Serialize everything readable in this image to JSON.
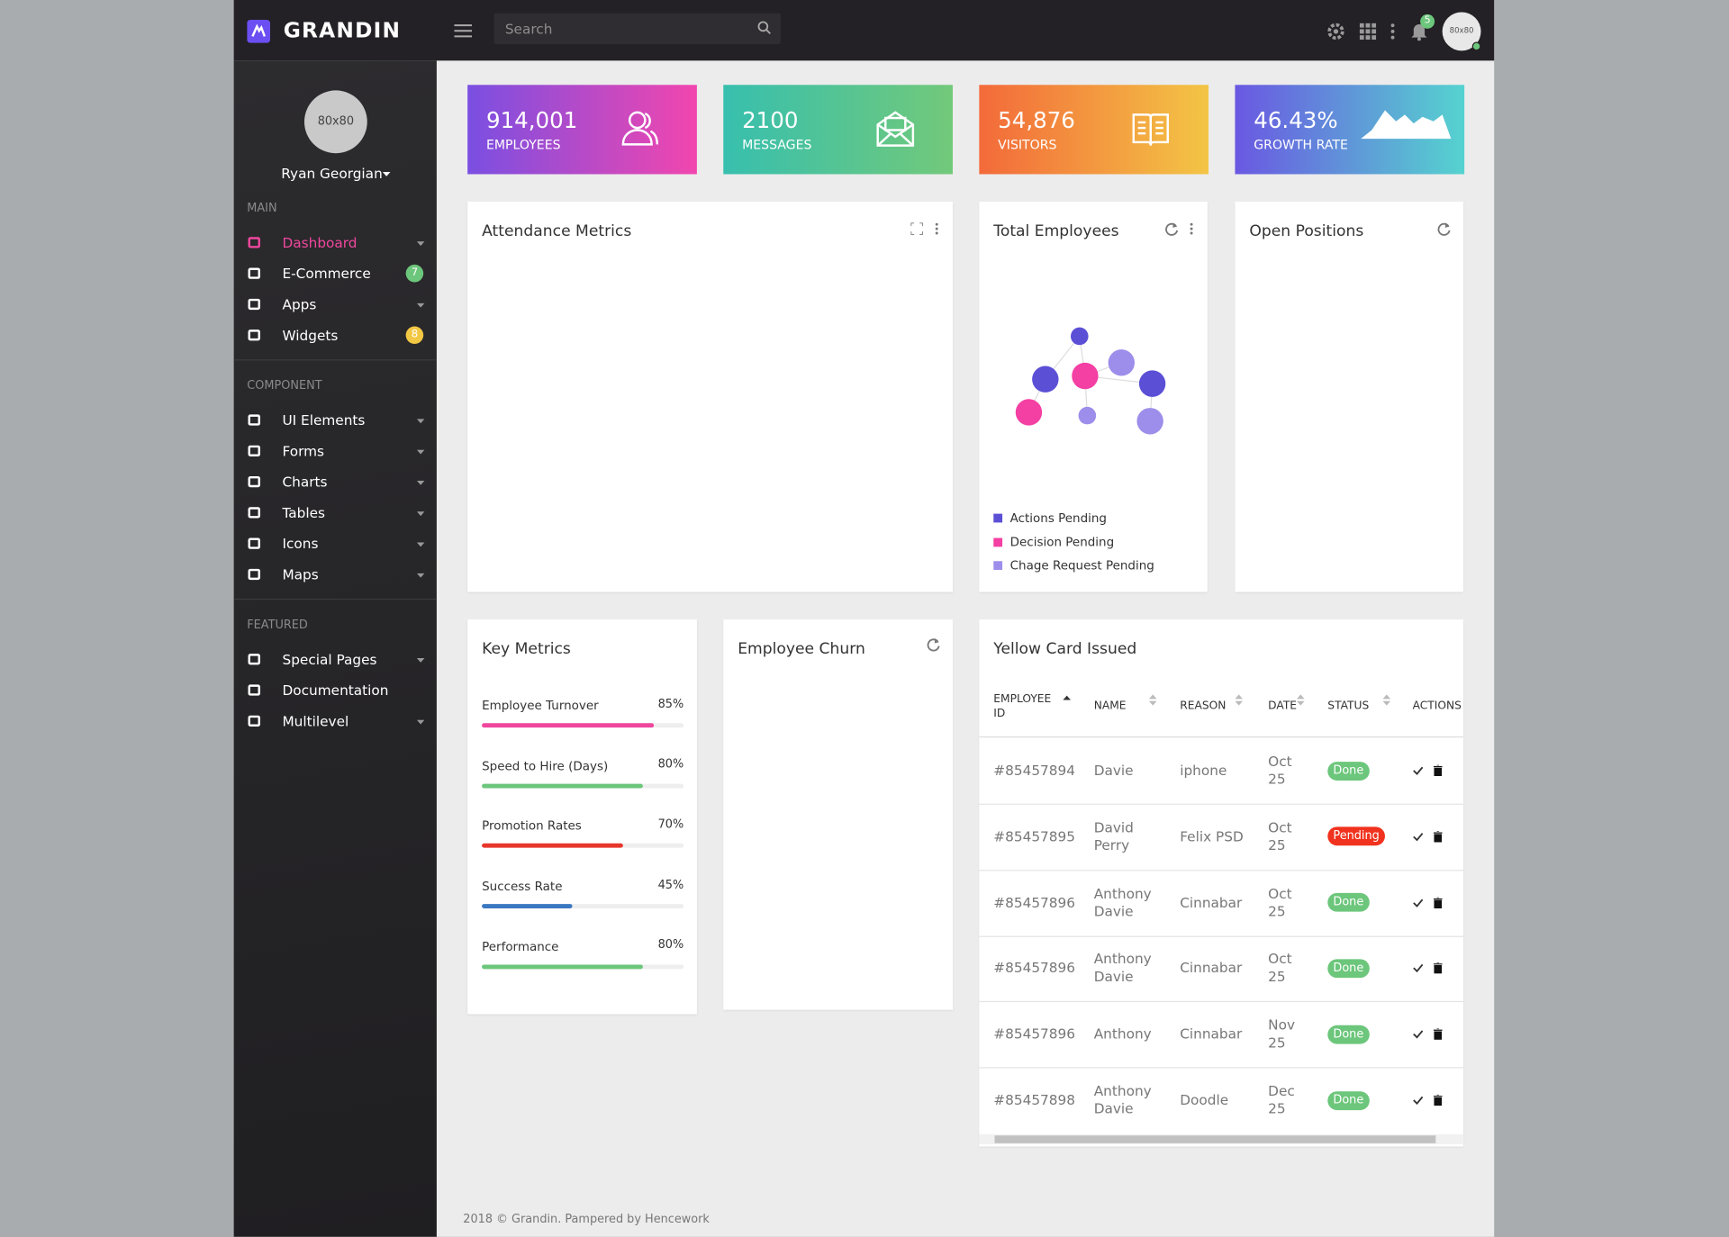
{
  "topbar": {
    "brand": "GRANDIN",
    "search_placeholder": "Search",
    "notifications": "5",
    "avatar": "80x80"
  },
  "sidebar": {
    "avatar": "80x80",
    "user": "Ryan Georgian",
    "sections": [
      {
        "title": "MAIN",
        "items": [
          {
            "label": "Dashboard",
            "active": true,
            "caret": true
          },
          {
            "label": "E-Commerce",
            "badge": "7",
            "badge_color": "#6cc67b"
          },
          {
            "label": "Apps",
            "caret": true
          },
          {
            "label": "Widgets",
            "badge": "8",
            "badge_color": "#f2c744"
          }
        ]
      },
      {
        "title": "COMPONENT",
        "items": [
          {
            "label": "UI Elements",
            "caret": true
          },
          {
            "label": "Forms",
            "caret": true
          },
          {
            "label": "Charts",
            "caret": true
          },
          {
            "label": "Tables",
            "caret": true
          },
          {
            "label": "Icons",
            "caret": true
          },
          {
            "label": "Maps",
            "caret": true
          }
        ]
      },
      {
        "title": "FEATURED",
        "items": [
          {
            "label": "Special Pages",
            "caret": true
          },
          {
            "label": "Documentation"
          },
          {
            "label": "Multilevel",
            "caret": true
          }
        ]
      }
    ]
  },
  "stats": [
    {
      "value": "914,001",
      "label": "EMPLOYEES",
      "gradient": [
        "#7a4fe2",
        "#f246ae"
      ]
    },
    {
      "value": "2100",
      "label": "MESSAGES",
      "gradient": [
        "#37bfae",
        "#72c97a"
      ]
    },
    {
      "value": "54,876",
      "label": "VISITORS",
      "gradient": [
        "#f36a3a",
        "#f3c545"
      ]
    },
    {
      "value": "46.43%",
      "label": "GROWTH RATE",
      "gradient": [
        "#6a58e2",
        "#55d3cf"
      ]
    }
  ],
  "cards": {
    "attendance": {
      "title": "Attendance Metrics"
    },
    "total_employees": {
      "title": "Total Employees",
      "legend": [
        {
          "name": "Actions Pending",
          "color": "#5b4fd6"
        },
        {
          "name": "Decision Pending",
          "color": "#f43fa3"
        },
        {
          "name": "Chage Request Pending",
          "color": "#9c8eea"
        }
      ]
    },
    "open_positions": {
      "title": "Open Positions"
    },
    "key_metrics": {
      "title": "Key Metrics",
      "max": 100,
      "metrics": [
        {
          "label": "Employee Turnover",
          "value": 85,
          "value_label": "85%",
          "color": "#f0479e"
        },
        {
          "label": "Speed to Hire (Days)",
          "value": 80,
          "value_label": "80%",
          "color": "#6cc67b"
        },
        {
          "label": "Promotion Rates",
          "value": 70,
          "value_label": "70%",
          "color": "#e8362b"
        },
        {
          "label": "Success Rate",
          "value": 45,
          "value_label": "45%",
          "color": "#3a78c2"
        },
        {
          "label": "Performance",
          "value": 80,
          "value_label": "80%",
          "color": "#6cc67b"
        }
      ]
    },
    "employee_churn": {
      "title": "Employee Churn"
    },
    "yellow_card": {
      "title": "Yellow Card Issued",
      "columns": [
        "EMPLOYEE ID",
        "NAME",
        "REASON",
        "DATE",
        "STATUS",
        "ACTIONS"
      ],
      "rows": [
        {
          "id": "#85457894",
          "name": "Davie",
          "reason": "iphone",
          "date": "Oct 25",
          "status": "Done",
          "status_color": "#6cc67b"
        },
        {
          "id": "#85457895",
          "name": "David Perry",
          "reason": "Felix PSD",
          "date": "Oct 25",
          "status": "Pending",
          "status_color": "#f0321e"
        },
        {
          "id": "#85457896",
          "name": "Anthony Davie",
          "reason": "Cinnabar",
          "date": "Oct 25",
          "status": "Done",
          "status_color": "#6cc67b"
        },
        {
          "id": "#85457896",
          "name": "Anthony Davie",
          "reason": "Cinnabar",
          "date": "Oct 25",
          "status": "Done",
          "status_color": "#6cc67b"
        },
        {
          "id": "#85457896",
          "name": "Anthony",
          "reason": "Cinnabar",
          "date": "Nov 25",
          "status": "Done",
          "status_color": "#6cc67b"
        },
        {
          "id": "#85457898",
          "name": "Anthony Davie",
          "reason": "Doodle",
          "date": "Dec 25",
          "status": "Done",
          "status_color": "#6cc67b"
        }
      ]
    }
  },
  "footer": "2018 © Grandin. Pampered by Hencework"
}
